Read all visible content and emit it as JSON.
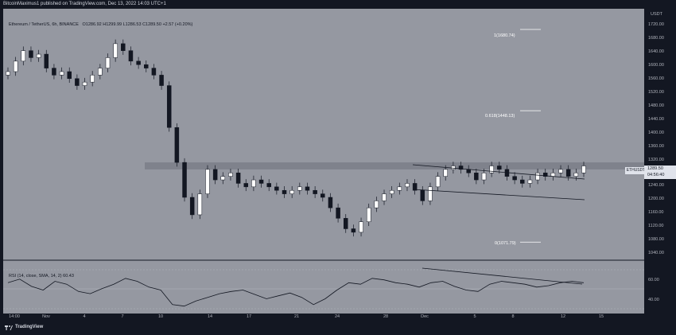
{
  "header": {
    "publisher_line": "BitcoinMaximus1 published on TradingView.com, Dec 13, 2022 14:03 UTC+1"
  },
  "legend": {
    "symbol": "Ethereum / TetherUS, 6h, BINANCE",
    "ohlc": "O1286.92  H1299.99  L1286.53  C1289.50  +2.57 (+0.20%)"
  },
  "rsi_legend": "RSI (14, close, SMA, 14, 2)  60.43",
  "price_axis": {
    "unit": "USDT",
    "ticks": [
      "1720.00",
      "1680.00",
      "1640.00",
      "1600.00",
      "1560.00",
      "1520.00",
      "1480.00",
      "1440.00",
      "1400.00",
      "1360.00",
      "1320.00",
      "1280.00",
      "1240.00",
      "1200.00",
      "1160.00",
      "1120.00",
      "1080.00",
      "1040.00"
    ],
    "price_label": "1289.50",
    "countdown": "04:56:40",
    "symbol_tag": "ETHUSDT"
  },
  "rsi_axis": {
    "ticks": [
      "60.00",
      "40.00"
    ]
  },
  "fib_levels": [
    {
      "label": "1(1680.74)"
    },
    {
      "label": "0.618(1448.13)"
    },
    {
      "label": "0(1071.79)"
    }
  ],
  "time_axis": [
    "14:00",
    "Nov",
    "4",
    "7",
    "10",
    "14",
    "17",
    "21",
    "24",
    "28",
    "Dec",
    "5",
    "8",
    "12",
    "15"
  ],
  "footer": {
    "brand": "TradingView"
  },
  "colors": {
    "background": "#9598a1",
    "frame": "#131722",
    "candle_up": "#ffffff",
    "candle_down": "#131722",
    "resistance_band": "#787b86"
  },
  "chart_data": {
    "type": "candlestick",
    "title": "Ethereum / TetherUS, 6h, BINANCE",
    "ylim": [
      1020,
      1740
    ],
    "resistance_zone": [
      1280,
      1300
    ],
    "close_approx": [
      1560,
      1590,
      1620,
      1600,
      1610,
      1570,
      1550,
      1560,
      1540,
      1520,
      1530,
      1550,
      1570,
      1600,
      1640,
      1620,
      1590,
      1580,
      1570,
      1550,
      1520,
      1400,
      1300,
      1200,
      1150,
      1210,
      1280,
      1250,
      1260,
      1270,
      1240,
      1230,
      1250,
      1240,
      1230,
      1220,
      1210,
      1220,
      1230,
      1220,
      1210,
      1200,
      1170,
      1140,
      1110,
      1100,
      1130,
      1170,
      1190,
      1210,
      1220,
      1230,
      1240,
      1220,
      1190,
      1230,
      1260,
      1280,
      1290,
      1280,
      1270,
      1250,
      1270,
      1290,
      1280,
      1260,
      1250,
      1240,
      1250,
      1270,
      1260,
      1270,
      1280,
      1260,
      1270,
      1290
    ],
    "rsi_values": [
      60,
      65,
      55,
      50,
      62,
      58,
      48,
      45,
      52,
      58,
      66,
      62,
      54,
      50,
      30,
      28,
      35,
      40,
      45,
      48,
      50,
      44,
      38,
      42,
      46,
      40,
      30,
      38,
      50,
      60,
      58,
      66,
      64,
      60,
      58,
      54,
      60,
      62,
      55,
      50,
      48,
      58,
      62,
      60,
      58,
      54,
      56,
      60,
      62,
      60
    ]
  }
}
